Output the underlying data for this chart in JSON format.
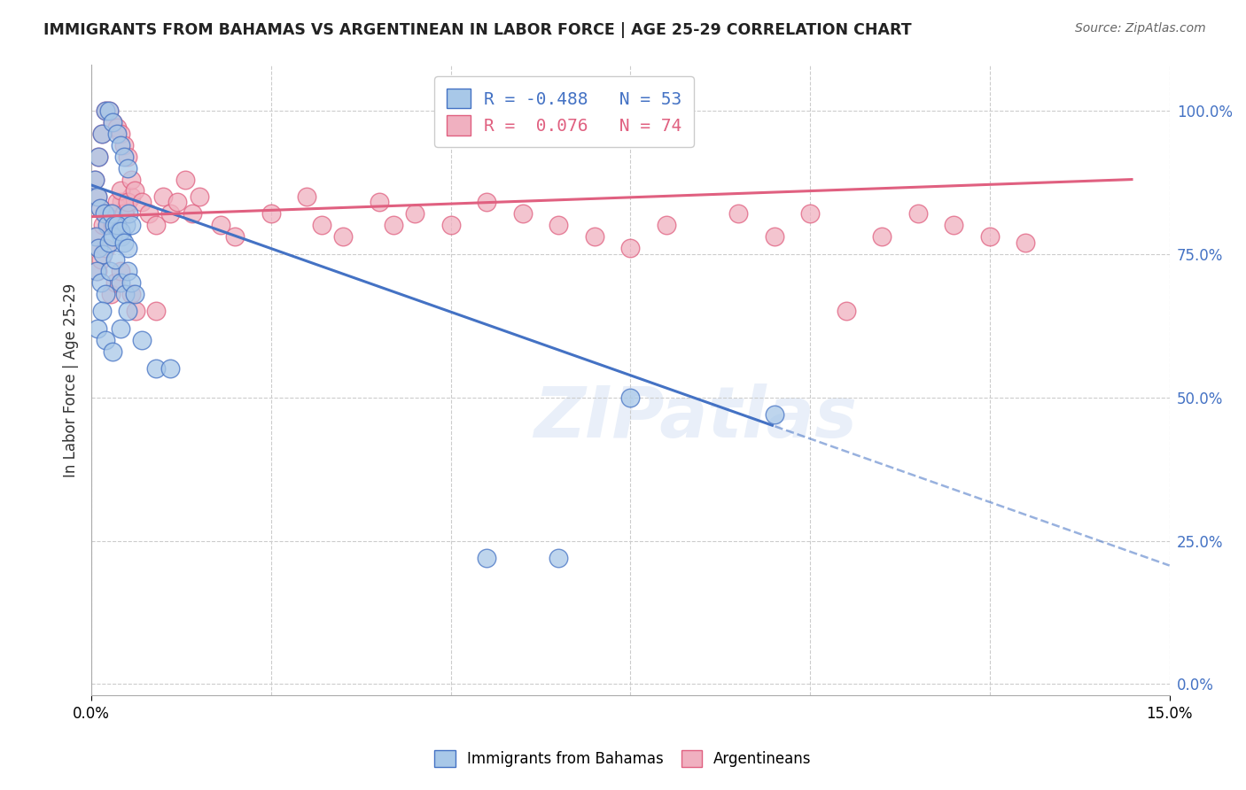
{
  "title": "IMMIGRANTS FROM BAHAMAS VS ARGENTINEAN IN LABOR FORCE | AGE 25-29 CORRELATION CHART",
  "source": "Source: ZipAtlas.com",
  "ylabel": "In Labor Force | Age 25-29",
  "ytick_labels": [
    "0.0%",
    "25.0%",
    "50.0%",
    "75.0%",
    "100.0%"
  ],
  "ytick_values": [
    0.0,
    0.25,
    0.5,
    0.75,
    1.0
  ],
  "xlim": [
    0.0,
    0.15
  ],
  "ylim": [
    -0.02,
    1.08
  ],
  "legend_R_blue": "-0.488",
  "legend_N_blue": "53",
  "legend_R_pink": " 0.076",
  "legend_N_pink": "74",
  "blue_color": "#a8c8e8",
  "pink_color": "#f0b0c0",
  "blue_line_color": "#4472c4",
  "pink_line_color": "#e06080",
  "watermark": "ZIPatlas",
  "background_color": "#ffffff",
  "grid_color": "#cccccc",
  "blue_x": [
    0.0005,
    0.001,
    0.0015,
    0.002,
    0.0025,
    0.003,
    0.0035,
    0.004,
    0.0045,
    0.005,
    0.0008,
    0.0012,
    0.0018,
    0.0022,
    0.0028,
    0.0032,
    0.0038,
    0.0042,
    0.0048,
    0.0052,
    0.0006,
    0.001,
    0.0016,
    0.0024,
    0.003,
    0.0036,
    0.004,
    0.0046,
    0.005,
    0.0055,
    0.0007,
    0.0013,
    0.0019,
    0.0026,
    0.0033,
    0.004,
    0.0047,
    0.005,
    0.0055,
    0.006,
    0.0009,
    0.0015,
    0.002,
    0.003,
    0.004,
    0.005,
    0.007,
    0.009,
    0.011,
    0.055,
    0.065,
    0.075,
    0.095
  ],
  "blue_y": [
    0.88,
    0.92,
    0.96,
    1.0,
    1.0,
    0.98,
    0.96,
    0.94,
    0.92,
    0.9,
    0.85,
    0.83,
    0.82,
    0.8,
    0.82,
    0.8,
    0.79,
    0.78,
    0.8,
    0.82,
    0.78,
    0.76,
    0.75,
    0.77,
    0.78,
    0.8,
    0.79,
    0.77,
    0.76,
    0.8,
    0.72,
    0.7,
    0.68,
    0.72,
    0.74,
    0.7,
    0.68,
    0.72,
    0.7,
    0.68,
    0.62,
    0.65,
    0.6,
    0.58,
    0.62,
    0.65,
    0.6,
    0.55,
    0.55,
    0.22,
    0.22,
    0.5,
    0.47
  ],
  "pink_x": [
    0.0005,
    0.001,
    0.0015,
    0.002,
    0.0025,
    0.003,
    0.0035,
    0.004,
    0.0045,
    0.005,
    0.0008,
    0.0012,
    0.0018,
    0.0022,
    0.0028,
    0.0032,
    0.0038,
    0.0042,
    0.0048,
    0.0055,
    0.0006,
    0.001,
    0.0016,
    0.0024,
    0.003,
    0.0036,
    0.004,
    0.0046,
    0.005,
    0.0055,
    0.006,
    0.007,
    0.008,
    0.009,
    0.01,
    0.011,
    0.012,
    0.013,
    0.014,
    0.015,
    0.018,
    0.02,
    0.025,
    0.03,
    0.032,
    0.035,
    0.04,
    0.042,
    0.045,
    0.05,
    0.055,
    0.06,
    0.065,
    0.07,
    0.075,
    0.08,
    0.09,
    0.095,
    0.1,
    0.105,
    0.11,
    0.115,
    0.12,
    0.125,
    0.13,
    0.0009,
    0.0014,
    0.0019,
    0.0027,
    0.0033,
    0.0041,
    0.0055,
    0.0062,
    0.009
  ],
  "pink_y": [
    0.88,
    0.92,
    0.96,
    1.0,
    1.0,
    0.98,
    0.97,
    0.96,
    0.94,
    0.92,
    0.85,
    0.83,
    0.82,
    0.8,
    0.82,
    0.8,
    0.82,
    0.84,
    0.83,
    0.85,
    0.78,
    0.76,
    0.8,
    0.82,
    0.8,
    0.84,
    0.86,
    0.82,
    0.84,
    0.88,
    0.86,
    0.84,
    0.82,
    0.8,
    0.85,
    0.82,
    0.84,
    0.88,
    0.82,
    0.85,
    0.8,
    0.78,
    0.82,
    0.85,
    0.8,
    0.78,
    0.84,
    0.8,
    0.82,
    0.8,
    0.84,
    0.82,
    0.8,
    0.78,
    0.76,
    0.8,
    0.82,
    0.78,
    0.82,
    0.65,
    0.78,
    0.82,
    0.8,
    0.78,
    0.77,
    0.72,
    0.74,
    0.76,
    0.68,
    0.7,
    0.72,
    0.68,
    0.65,
    0.65
  ]
}
